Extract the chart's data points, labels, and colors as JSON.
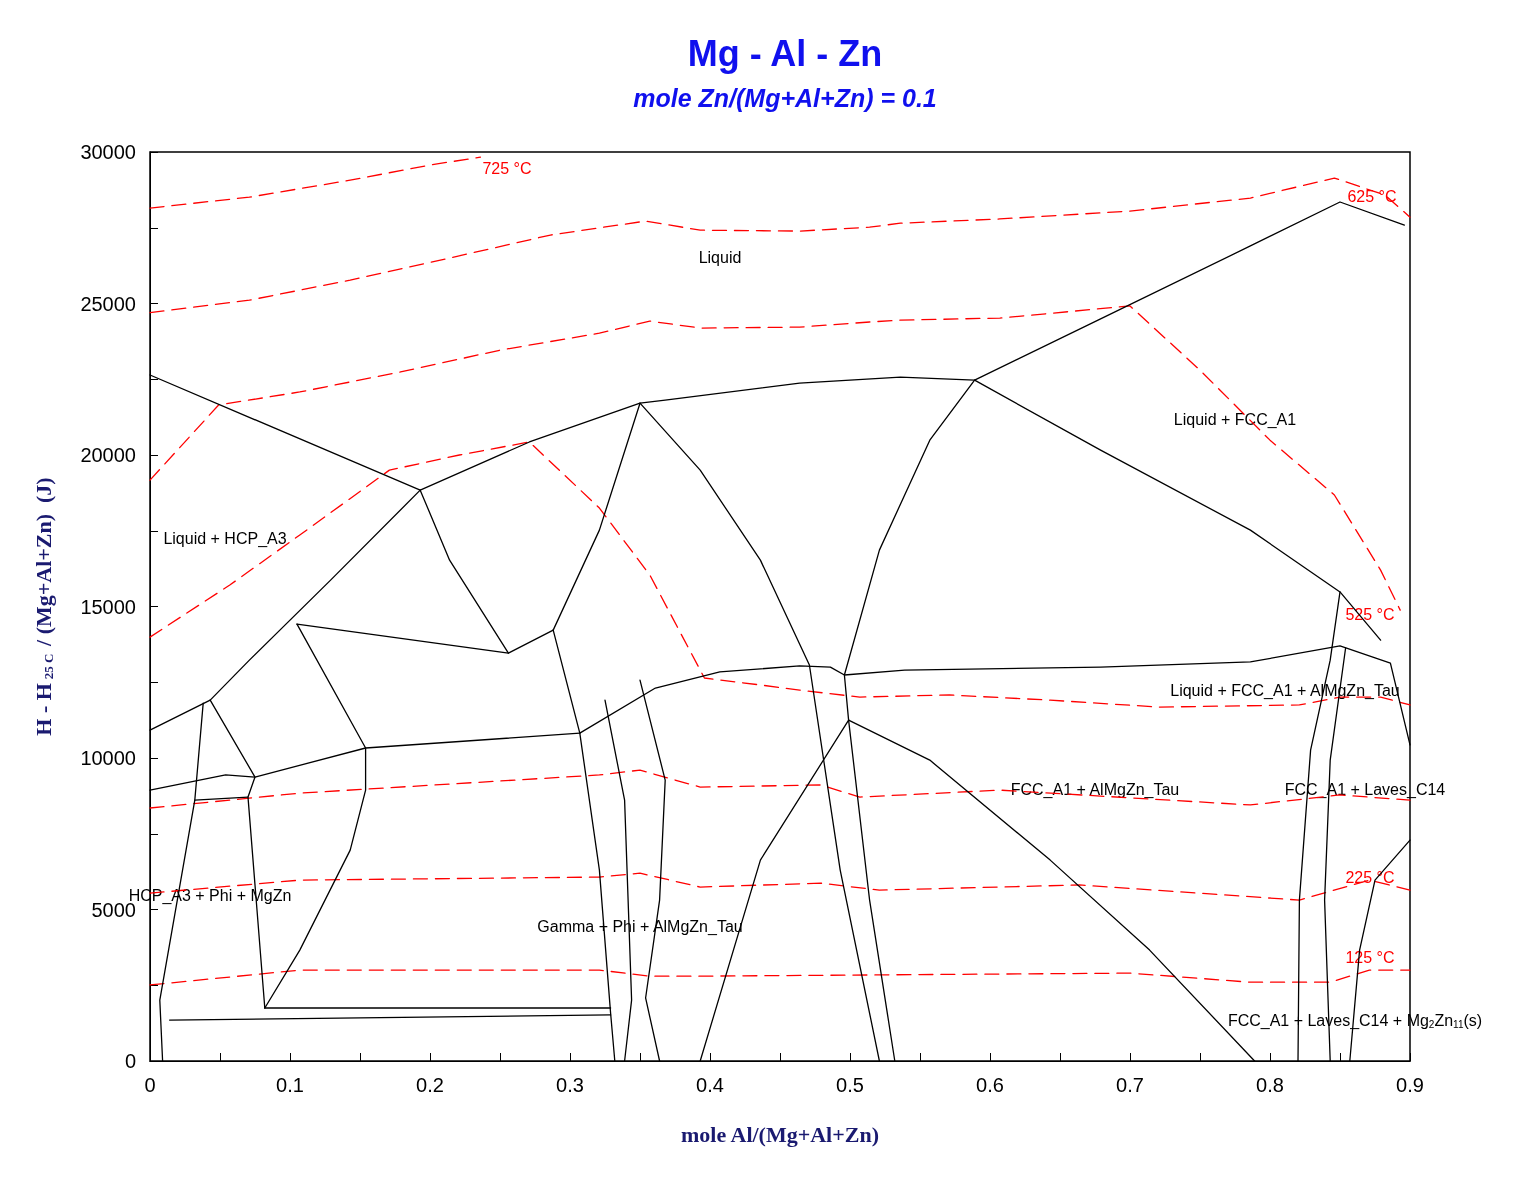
{
  "chart_data": {
    "type": "line",
    "title": "Mg - Al - Zn",
    "subtitle": "mole Zn/(Mg+Al+Zn) = 0.1",
    "xlabel": "mole Al/(Mg+Al+Zn)",
    "ylabel": "H - H$_{25 C}$ / (Mg+Al+Zn)  (J)",
    "marker": "none",
    "xlim": [
      0,
      0.9
    ],
    "xticks": [
      0,
      {
        "value": 0.05,
        "label": null
      },
      0.1,
      {
        "value": 0.15,
        "label": null
      },
      0.2,
      {
        "value": 0.25,
        "label": null
      },
      0.3,
      {
        "value": 0.35,
        "label": null
      },
      0.4,
      {
        "value": 0.45,
        "label": null
      },
      0.5,
      {
        "value": 0.55,
        "label": null
      },
      0.6,
      {
        "value": 0.65,
        "label": null
      },
      0.7,
      {
        "value": 0.75,
        "label": null
      },
      0.8,
      {
        "value": 0.85,
        "label": null
      },
      0.9
    ],
    "ylim": [
      0,
      30000
    ],
    "yticks": [
      0,
      {
        "value": 2500,
        "label": null
      },
      5000,
      {
        "value": 7500,
        "label": null
      },
      10000,
      {
        "value": 12500,
        "label": null
      },
      15000,
      {
        "value": 17500,
        "label": null
      },
      20000,
      {
        "value": 22500,
        "label": null
      },
      25000,
      {
        "value": 27500,
        "label": null
      },
      30000
    ],
    "series": [
      {
        "color": "#ff0000",
        "line_style": "dashed",
        "x": [
          0,
          0.071,
          0.143,
          0.2,
          0.236
        ],
        "values": [
          28150,
          28510,
          29070,
          29570,
          29830
        ]
      },
      {
        "color": "#ff0000",
        "line_style": "dashed",
        "x": [
          0,
          0.071,
          0.143,
          0.214,
          0.286,
          0.354,
          0.393,
          0.464,
          0.514,
          0.536,
          0.607,
          0.7,
          0.786,
          0.846,
          0.882,
          0.9
        ],
        "values": [
          24700,
          25110,
          25770,
          26500,
          27260,
          27720,
          27420,
          27390,
          27520,
          27650,
          27790,
          28050,
          28480,
          29140,
          28580,
          27850
        ]
      },
      {
        "color": "#ff0000",
        "line_style": "dashed",
        "x": [
          0,
          0.049,
          0.107,
          0.179,
          0.25,
          0.321,
          0.357,
          0.393,
          0.464,
          0.514,
          0.536,
          0.607,
          0.7,
          0.75,
          0.8,
          0.846,
          0.879,
          0.893
        ],
        "values": [
          19170,
          21650,
          22080,
          22740,
          23460,
          24020,
          24420,
          24190,
          24220,
          24390,
          24450,
          24520,
          24920,
          22800,
          20490,
          18680,
          16200,
          14880
        ]
      },
      {
        "color": "#ff0000",
        "line_style": "dashed",
        "x": [
          0,
          0.057,
          0.107,
          0.171,
          0.221,
          0.271,
          0.321,
          0.357,
          0.396,
          0.436,
          0.464,
          0.507,
          0.571,
          0.643,
          0.721,
          0.821,
          0.85,
          0.879,
          0.9
        ],
        "values": [
          13990,
          15710,
          17360,
          19500,
          20000,
          20430,
          18250,
          16040,
          12640,
          12410,
          12240,
          12010,
          12080,
          11910,
          11680,
          11750,
          12010,
          12010,
          11750
        ]
      },
      {
        "color": "#ff0000",
        "line_style": "dashed",
        "x": [
          0,
          0.107,
          0.321,
          0.35,
          0.393,
          0.479,
          0.507,
          0.607,
          0.786,
          0.85,
          0.9
        ],
        "values": [
          8350,
          8840,
          9440,
          9600,
          9040,
          9110,
          8710,
          8940,
          8450,
          8780,
          8610
        ]
      },
      {
        "color": "#ff0000",
        "line_style": "dashed",
        "x": [
          0,
          0.107,
          0.321,
          0.35,
          0.393,
          0.479,
          0.521,
          0.664,
          0.821,
          0.871,
          0.9
        ],
        "values": [
          5540,
          5970,
          6070,
          6200,
          5740,
          5870,
          5640,
          5810,
          5310,
          5970,
          5640
        ]
      },
      {
        "color": "#ff0000",
        "line_style": "dashed",
        "x": [
          0,
          0.107,
          0.321,
          0.357,
          0.393,
          0.7,
          0.786,
          0.843,
          0.871,
          0.9
        ],
        "values": [
          2510,
          3000,
          3000,
          2800,
          2800,
          2900,
          2600,
          2600,
          3000,
          3000
        ]
      },
      {
        "color": "#000000",
        "line_style": "solid",
        "x": [
          0,
          0.193
        ],
        "values": [
          22640,
          18840
        ]
      },
      {
        "color": "#000000",
        "line_style": "solid",
        "x": [
          0,
          0.043,
          0.071,
          0.129,
          0.193,
          0.271,
          0.35,
          0.368,
          0.464,
          0.536,
          0.589,
          0.679,
          0.786,
          0.85,
          0.896
        ],
        "values": [
          10920,
          11910,
          13230,
          15870,
          18840,
          20430,
          21710,
          21810,
          22370,
          22570,
          22470,
          24490,
          26900,
          28350,
          27590
        ]
      },
      {
        "color": "#000000",
        "line_style": "solid",
        "x": [
          0.193,
          0.214,
          0.256
        ],
        "values": [
          18840,
          16530,
          13460
        ]
      },
      {
        "color": "#000000",
        "line_style": "solid",
        "x": [
          0.105,
          0.256,
          0.288
        ],
        "values": [
          14420,
          13460,
          14220
        ]
      },
      {
        "color": "#000000",
        "line_style": "solid",
        "x": [
          0.288,
          0.321,
          0.35
        ],
        "values": [
          14220,
          17520,
          21710
        ]
      },
      {
        "color": "#000000",
        "line_style": "solid",
        "x": [
          0.35,
          0.393,
          0.436,
          0.471,
          0.493,
          0.521
        ],
        "values": [
          21710,
          19500,
          16530,
          13070,
          6300,
          0
        ]
      },
      {
        "color": "#000000",
        "line_style": "solid",
        "x": [
          0.589,
          0.557,
          0.521,
          0.496,
          0.499,
          0.514,
          0.532
        ],
        "values": [
          22470,
          20490,
          16860,
          12740,
          11250,
          5310,
          0
        ]
      },
      {
        "color": "#000000",
        "line_style": "solid",
        "x": [
          0.589,
          0.679,
          0.786,
          0.85,
          0.879
        ],
        "values": [
          22470,
          20160,
          17520,
          15480,
          13890
        ]
      },
      {
        "color": "#000000",
        "line_style": "solid",
        "x": [
          0.288,
          0.307,
          0.321,
          0.329,
          0.332
        ],
        "values": [
          14220,
          10820,
          6300,
          1580,
          0
        ]
      },
      {
        "color": "#000000",
        "line_style": "solid",
        "x": [
          0.307,
          0.361,
          0.407,
          0.464,
          0.486,
          0.496,
          0.539,
          0.679,
          0.786,
          0.85,
          0.886,
          0.9
        ],
        "values": [
          10820,
          12310,
          12840,
          13040,
          13000,
          12740,
          12900,
          13000,
          13170,
          13700,
          13130,
          10430
        ]
      },
      {
        "color": "#000000",
        "line_style": "solid",
        "x": [
          0,
          0.054,
          0.075,
          0.154,
          0.307
        ],
        "values": [
          8940,
          9440,
          9370,
          10330,
          10820
        ]
      },
      {
        "color": "#000000",
        "line_style": "solid",
        "x": [
          0.105,
          0.154,
          0.154,
          0.143,
          0.107,
          0.082
        ],
        "values": [
          14420,
          10330,
          8940,
          6960,
          3660,
          1750
        ]
      },
      {
        "color": "#000000",
        "line_style": "solid",
        "x": [
          0.014,
          0.329
        ],
        "values": [
          1350,
          1520
        ]
      },
      {
        "color": "#000000",
        "line_style": "solid",
        "x": [
          0.082,
          0.329
        ],
        "values": [
          1750,
          1750
        ]
      },
      {
        "color": "#000000",
        "line_style": "solid",
        "x": [
          0.325,
          0.339,
          0.344,
          0.339
        ],
        "values": [
          11910,
          8610,
          2010,
          0
        ]
      },
      {
        "color": "#000000",
        "line_style": "solid",
        "x": [
          0.35,
          0.368,
          0.364,
          0.354,
          0.364
        ],
        "values": [
          12570,
          9270,
          5310,
          2080,
          0
        ]
      },
      {
        "color": "#000000",
        "line_style": "solid",
        "x": [
          0.499,
          0.436,
          0.393
        ],
        "values": [
          11250,
          6630,
          0
        ]
      },
      {
        "color": "#000000",
        "line_style": "solid",
        "x": [
          0.499,
          0.557,
          0.643,
          0.714,
          0.789
        ],
        "values": [
          11250,
          9930,
          6630,
          3660,
          0
        ]
      },
      {
        "color": "#000000",
        "line_style": "solid",
        "x": [
          0.85,
          0.843,
          0.829,
          0.821,
          0.82
        ],
        "values": [
          15480,
          13230,
          10260,
          5310,
          0
        ]
      },
      {
        "color": "#000000",
        "line_style": "solid",
        "x": [
          0.854,
          0.843,
          0.839,
          0.843
        ],
        "values": [
          13630,
          9930,
          5310,
          0
        ]
      },
      {
        "color": "#000000",
        "line_style": "solid",
        "x": [
          0.9,
          0.875,
          0.864,
          0.857
        ],
        "values": [
          7290,
          5970,
          3660,
          0
        ]
      },
      {
        "color": "#000000",
        "line_style": "solid",
        "x": [
          0.038,
          0.032,
          0.007,
          0.009
        ],
        "values": [
          11810,
          8610,
          2010,
          0
        ]
      },
      {
        "color": "#000000",
        "line_style": "solid",
        "x": [
          0.043,
          0.075,
          0.07,
          0.082
        ],
        "values": [
          11910,
          9370,
          8710,
          1750
        ]
      },
      {
        "color": "#000000",
        "line_style": "solid",
        "x": [
          0.032,
          0.07
        ],
        "values": [
          8610,
          8710
        ]
      }
    ],
    "annotations": [
      "Liquid",
      "Liquid + FCC_A1",
      "Liquid + HCP_A3",
      "Liquid + FCC_A1 + AlMgZn_Tau",
      "FCC_A1 + AlMgZn_Tau",
      "FCC_A1 + Laves_C14",
      "HCP_A3 + Phi + MgZn",
      "Gamma + Phi + AlMgZn_Tau",
      "FCC_A1 + Laves_C14 + Mg$_{2}$Zn$_{11}$(s)",
      "725 °C",
      "625 °C",
      "525 °C",
      "225 °C",
      "125 °C"
    ]
  }
}
